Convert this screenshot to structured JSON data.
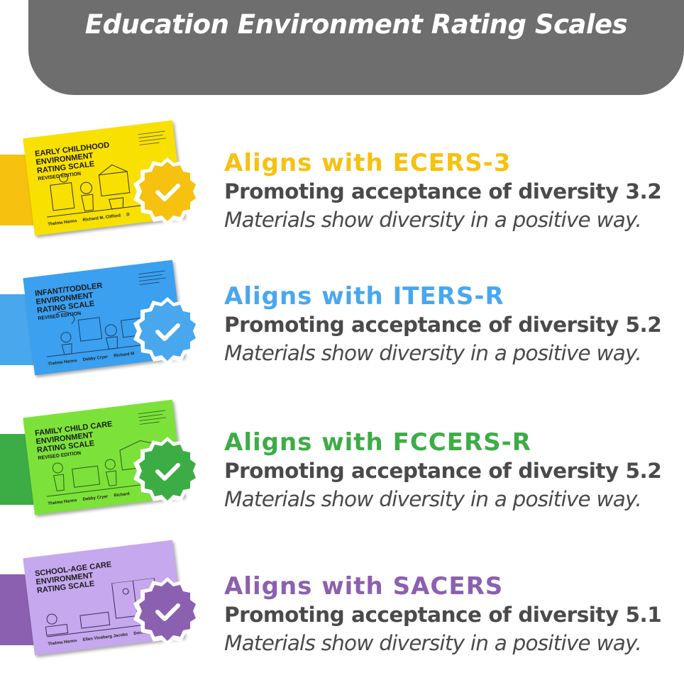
{
  "header": {
    "title": "Education Environment Rating Scales"
  },
  "rows": [
    {
      "color": "#f6c10f",
      "book_color": "#f8e000",
      "book_title": "EARLY CHILDHOOD\nENVIRONMENT\nRATING SCALE",
      "book_edition": "REVISED EDITION",
      "book_authors": "Thelma Harms     Richard M. Clifford     D",
      "align_prefix": "Aligns with ",
      "scale": "ECERS-3",
      "promo": "Promoting acceptance of diversity 3.2",
      "materials": "Materials show diversity in a positive way.",
      "badge_icon": "check-icon"
    },
    {
      "color": "#49a7ee",
      "book_color": "#3aa0ef",
      "book_title": "INFANT/TODDLER\nENVIRONMENT\nRATING SCALE",
      "book_edition": "REVISED EDITION",
      "book_authors": "Thelma Harms     Debby Cryer     Richard M",
      "align_prefix": "Aligns with ",
      "scale": "ITERS-R",
      "promo": "Promoting acceptance of diversity 5.2",
      "materials": "Materials show diversity in a positive way.",
      "badge_icon": "check-icon"
    },
    {
      "color": "#3cad45",
      "book_color": "#7ce23a",
      "book_title": "FAMILY CHILD CARE\nENVIRONMENT\nRATING SCALE",
      "book_edition": "REVISED EDITION",
      "book_authors": "Thelma Harms     Debby Cryer     Richard",
      "align_prefix": "Aligns with ",
      "scale": "FCCERS-R",
      "promo": "Promoting acceptance of diversity 5.2",
      "materials": "Materials show diversity in a positive way.",
      "badge_icon": "check-icon"
    },
    {
      "color": "#8c60b0",
      "book_color": "#c6a8ee",
      "book_title": "SCHOOL-AGE CARE\nENVIRONMENT\nRATING SCALE",
      "book_edition": "",
      "book_authors": "Thelma Harms     Ellen Vineberg Jacobs     Donna",
      "align_prefix": "Aligns with ",
      "scale": "SACERS",
      "promo": "Promoting acceptance of diversity 5.1",
      "materials": "Materials show diversity in a positive way.",
      "badge_icon": "check-icon"
    }
  ]
}
